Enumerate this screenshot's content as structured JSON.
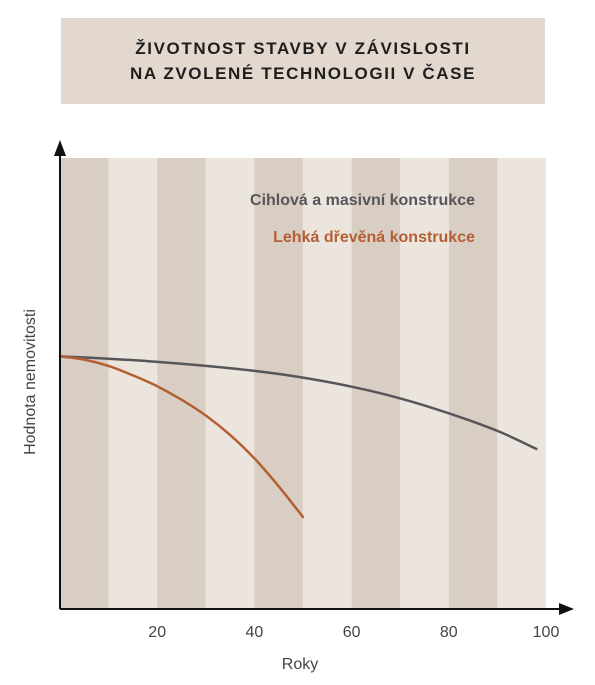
{
  "title": {
    "line1": "ŽIVOTNOST STAVBY V ZÁVISLOSTI",
    "line2": "NA ZVOLENÉ TECHNOLOGII V ČASE"
  },
  "colors": {
    "title_bg": "#e2d8cd",
    "band_dark": "#d9cec3",
    "band_light": "#ebe5de",
    "axis": "#111111",
    "series_masonry": "#56565a",
    "series_wood": "#b45f33",
    "text": "#444444"
  },
  "chart_data": {
    "type": "line",
    "title": "ŽIVOTNOST STAVBY V ZÁVISLOSTI NA ZVOLENÉ TECHNOLOGII V ČASE",
    "xlabel": "Roky",
    "ylabel": "Hodnota nemovitosti",
    "xlim": [
      0,
      100
    ],
    "ylim": [
      0,
      100
    ],
    "x_ticks": [
      20,
      40,
      60,
      80,
      100
    ],
    "y_ticks_shown": false,
    "grid": "alternating vertical bands every 10 years",
    "legend_placement": "top-right",
    "series": [
      {
        "name": "Cihlová a masivní konstrukce",
        "color": "#56565a",
        "x": [
          0,
          10,
          20,
          30,
          40,
          50,
          60,
          70,
          80,
          90,
          98
        ],
        "y": [
          56,
          55.5,
          54.8,
          53.9,
          52.8,
          51.3,
          49.3,
          46.7,
          43.4,
          39.5,
          35.5
        ]
      },
      {
        "name": "Lehká dřevěná konstrukce",
        "color": "#b45f33",
        "x": [
          0,
          5,
          10,
          15,
          20,
          25,
          30,
          35,
          40,
          45,
          50
        ],
        "y": [
          56,
          55.3,
          53.9,
          51.8,
          49.4,
          46.4,
          42.9,
          38.6,
          33.4,
          27.2,
          20.4
        ]
      }
    ]
  }
}
